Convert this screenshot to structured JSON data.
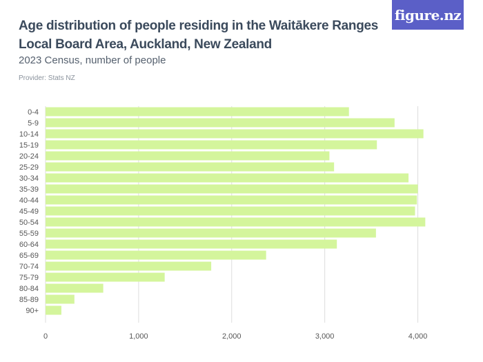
{
  "header": {
    "title": "Age distribution of people residing in the Waitākere Ranges Local Board Area, Auckland, New Zealand",
    "subtitle": "2023 Census, number of people",
    "provider": "Provider: Stats NZ",
    "logo": "figure.nz"
  },
  "colors": {
    "bar": "#d4f59c",
    "grid": "#dcdcdc",
    "axis_text": "#555555",
    "logo_bg": "#5b5fc7"
  },
  "chart_data": {
    "type": "bar",
    "orientation": "horizontal",
    "categories": [
      "0-4",
      "5-9",
      "10-14",
      "15-19",
      "20-24",
      "25-29",
      "30-34",
      "35-39",
      "40-44",
      "45-49",
      "50-54",
      "55-59",
      "60-64",
      "65-69",
      "70-74",
      "75-79",
      "80-84",
      "85-89",
      "90+"
    ],
    "values": [
      3260,
      3750,
      4060,
      3560,
      3050,
      3100,
      3900,
      4000,
      3990,
      3970,
      4080,
      3550,
      3130,
      2370,
      1780,
      1280,
      620,
      310,
      170
    ],
    "xlim": [
      0,
      4500
    ],
    "xticks": [
      0,
      1000,
      2000,
      3000,
      4000
    ],
    "xtick_labels": [
      "0",
      "1,000",
      "2,000",
      "3,000",
      "4,000"
    ],
    "grid": true,
    "legend": "none"
  }
}
